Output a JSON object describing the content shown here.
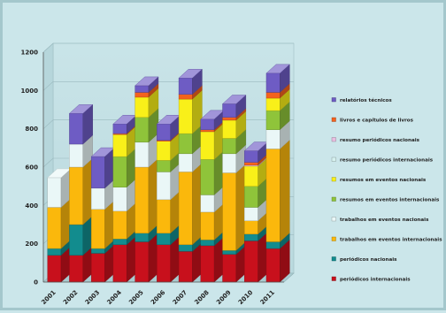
{
  "chart_data": {
    "type": "bar",
    "stacked": true,
    "three_d": true,
    "categories": [
      "2001",
      "2002",
      "2003",
      "2004",
      "2005",
      "2006",
      "2007",
      "2008",
      "2009",
      "2010",
      "2011"
    ],
    "ylim": [
      0,
      1200
    ],
    "yticks": [
      "0",
      "200",
      "400",
      "600",
      "800",
      "1000",
      "1200"
    ],
    "grid": true,
    "legend_position": "right",
    "series": [
      {
        "name": "periódicos internacionais",
        "color": "#c8101c",
        "values": [
          140,
          140,
          150,
          195,
          210,
          195,
          160,
          190,
          145,
          215,
          175
        ]
      },
      {
        "name": "periódicos nacionais",
        "color": "#128c8e",
        "values": [
          35,
          160,
          25,
          30,
          45,
          60,
          35,
          30,
          20,
          35,
          35
        ]
      },
      {
        "name": "trabalhos em eventos internacionais",
        "color": "#fbb80c",
        "values": [
          215,
          300,
          205,
          145,
          345,
          175,
          380,
          145,
          405,
          70,
          485
        ]
      },
      {
        "name": "trabalhos em eventos nacionais",
        "color": "#eaf7f7",
        "values": [
          155,
          120,
          110,
          125,
          130,
          145,
          95,
          90,
          100,
          70,
          100
        ]
      },
      {
        "name": "resumos em eventos internacionais",
        "color": "#8fc43a",
        "values": [
          0,
          0,
          0,
          160,
          130,
          60,
          105,
          185,
          80,
          110,
          100
        ]
      },
      {
        "name": "resumos em eventos nacionais",
        "color": "#f9f019",
        "values": [
          0,
          0,
          0,
          115,
          105,
          100,
          180,
          145,
          95,
          105,
          65
        ]
      },
      {
        "name": "resumo periódicos internacionais",
        "color": "#d6f1ef",
        "values": [
          0,
          0,
          0,
          0,
          0,
          0,
          0,
          0,
          0,
          0,
          0
        ]
      },
      {
        "name": "resumo periódicos nacionais",
        "color": "#e9bde0",
        "values": [
          0,
          0,
          0,
          0,
          0,
          0,
          0,
          0,
          0,
          5,
          0
        ]
      },
      {
        "name": "livros e capítulos de livros",
        "color": "#f4621e",
        "values": [
          0,
          0,
          0,
          5,
          25,
          5,
          25,
          10,
          15,
          15,
          30
        ]
      },
      {
        "name": "relatórios técnicos",
        "color": "#6e5cc4",
        "values": [
          0,
          160,
          165,
          50,
          35,
          85,
          85,
          55,
          70,
          60,
          100
        ]
      }
    ]
  }
}
